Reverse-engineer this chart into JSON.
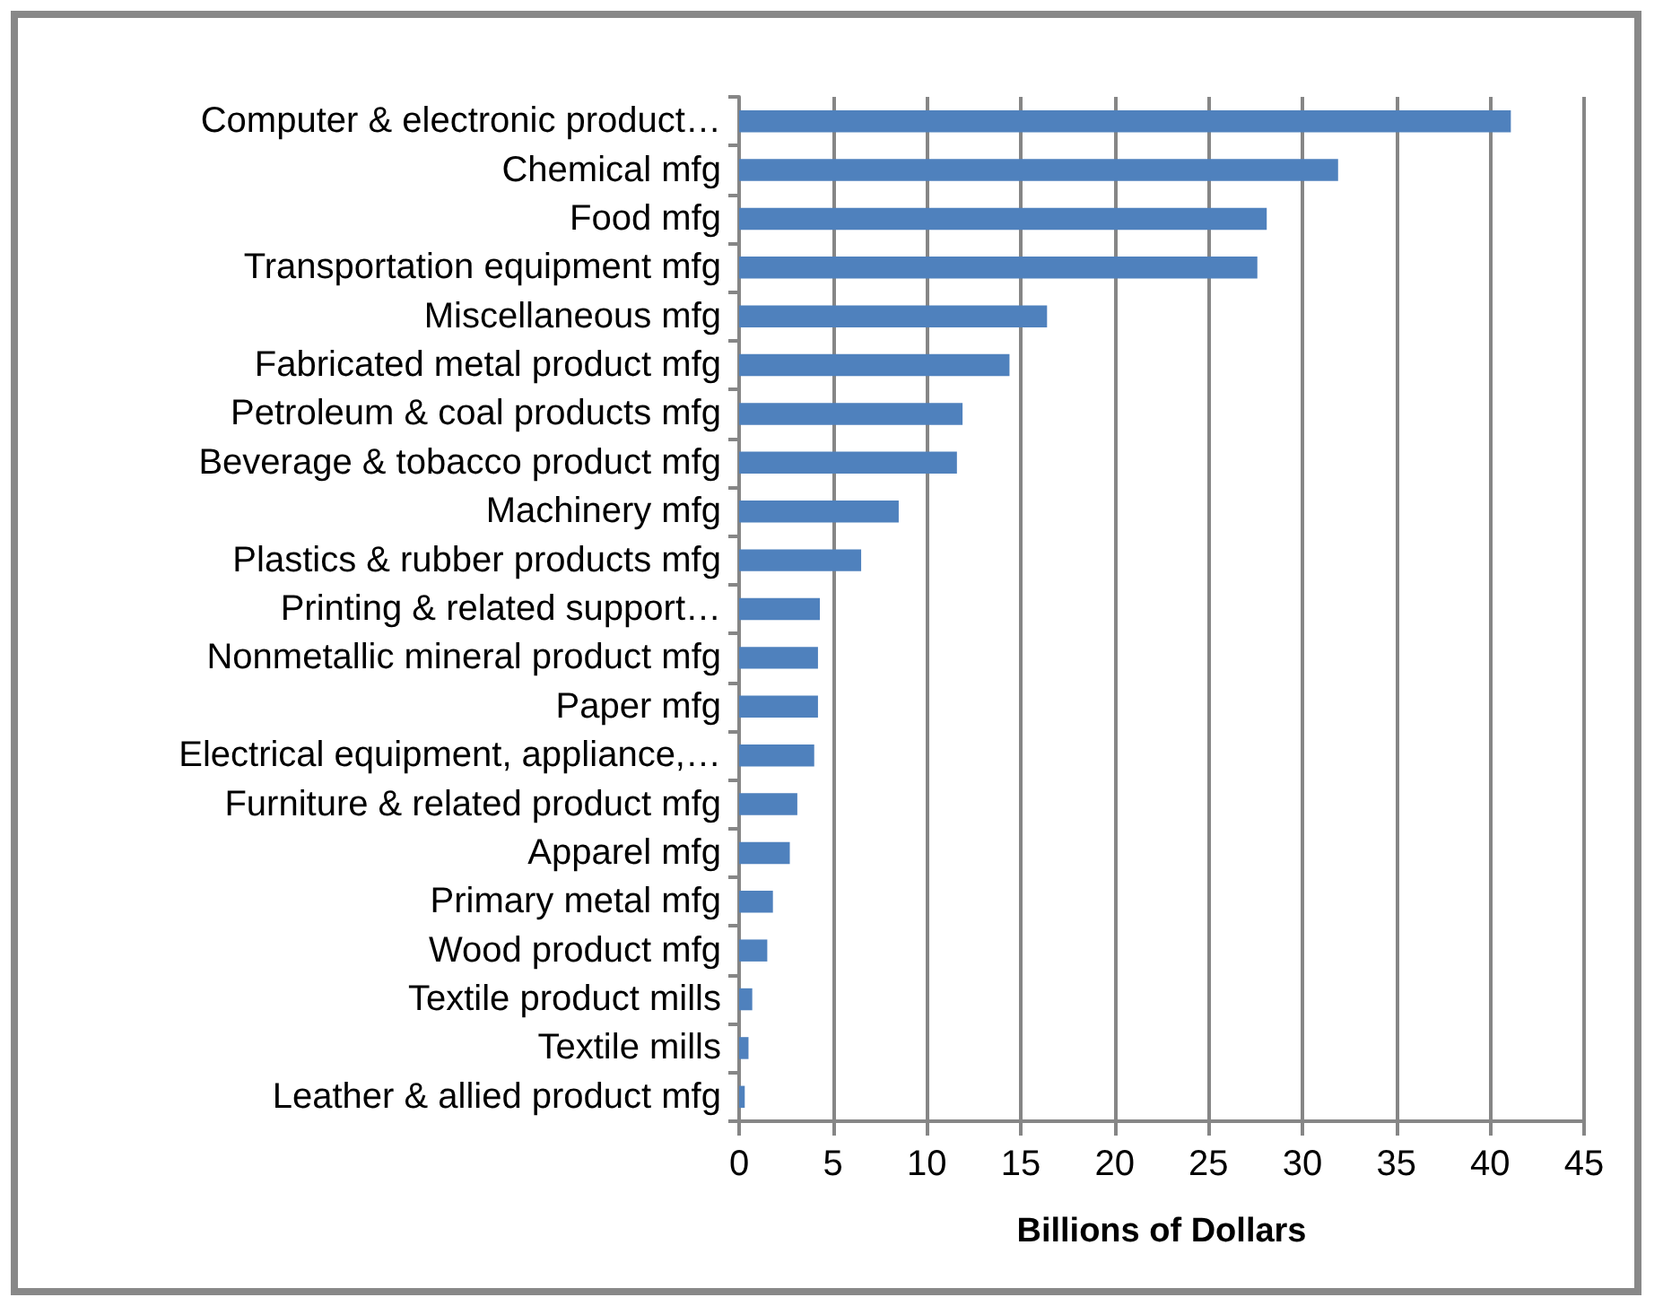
{
  "chart_data": {
    "type": "bar",
    "orientation": "horizontal",
    "xlabel": "Billions of Dollars",
    "categories": [
      "Computer & electronic product…",
      "Chemical mfg",
      "Food mfg",
      "Transportation equipment mfg",
      "Miscellaneous mfg",
      "Fabricated metal product mfg",
      "Petroleum & coal products mfg",
      "Beverage & tobacco product mfg",
      "Machinery mfg",
      "Plastics & rubber products mfg",
      "Printing & related support…",
      "Nonmetallic mineral product mfg",
      "Paper mfg",
      "Electrical equipment, appliance,…",
      "Furniture & related product mfg",
      "Apparel mfg",
      "Primary metal mfg",
      "Wood product mfg",
      "Textile product mills",
      "Textile mills",
      "Leather & allied product mfg"
    ],
    "values": [
      41.1,
      31.9,
      28.1,
      27.6,
      16.4,
      14.4,
      11.9,
      11.6,
      8.5,
      6.5,
      4.3,
      4.2,
      4.2,
      4.0,
      3.1,
      2.7,
      1.8,
      1.5,
      0.7,
      0.5,
      0.3
    ],
    "color": "#4f81bd",
    "xlim": [
      0,
      45
    ],
    "xticks": [
      0,
      5,
      10,
      15,
      20,
      25,
      30,
      35,
      40,
      45
    ],
    "grid": "x"
  }
}
